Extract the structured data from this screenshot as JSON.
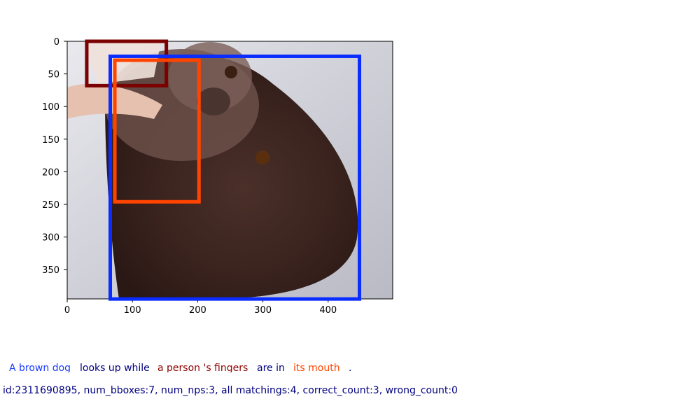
{
  "plot": {
    "x_ticks": [
      "0",
      "100",
      "200",
      "300",
      "400"
    ],
    "y_ticks": [
      "0",
      "50",
      "100",
      "150",
      "200",
      "250",
      "300",
      "350"
    ]
  },
  "boxes": [
    {
      "label": "a person 's fingers",
      "color": "#7b0000",
      "x0": 30,
      "y0": 0,
      "x1": 152,
      "y1": 68
    },
    {
      "label": "A brown dog",
      "color": "#0a2cff",
      "x0": 66,
      "y0": 23,
      "x1": 448,
      "y1": 395
    },
    {
      "label": "its mouth",
      "color": "#ff4400",
      "x0": 73,
      "y0": 29,
      "x1": 202,
      "y1": 246
    }
  ],
  "caption": {
    "phrases": [
      {
        "text": "A brown dog",
        "color": "#1a3cff"
      },
      {
        "text": "looks up while",
        "color": "#000080"
      },
      {
        "text": "a person 's fingers",
        "color": "#8b0000"
      },
      {
        "text": "are in",
        "color": "#000080"
      },
      {
        "text": "its mouth",
        "color": "#ff4400"
      },
      {
        "text": ".",
        "color": "#000080"
      }
    ]
  },
  "meta_line": "id:2311690895, num_bboxes:7, num_nps:3, all matchings:4, correct_count:3, wrong_count:0"
}
